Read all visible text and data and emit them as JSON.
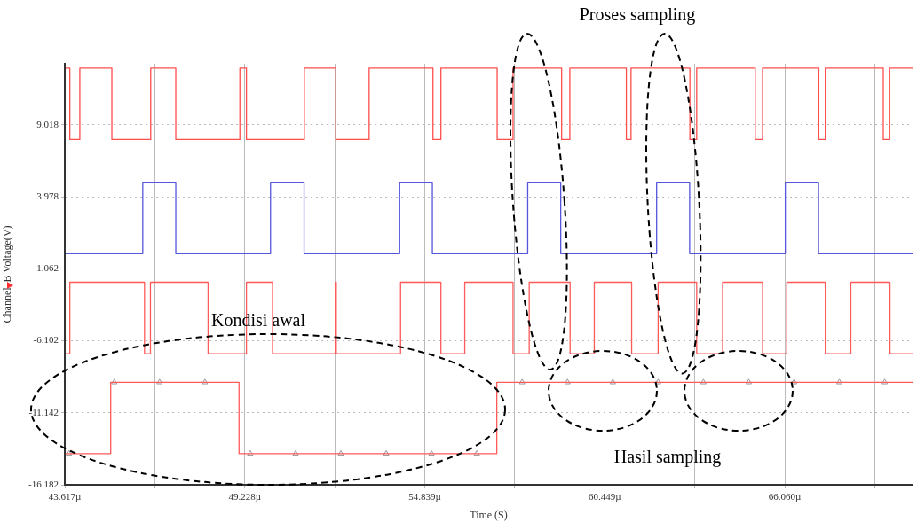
{
  "chart_data": {
    "type": "step",
    "xlabel": "Time (S)",
    "ylabel": "Channel_B Voltage(V)",
    "xlim": [
      43.617,
      70.04
    ],
    "xticks": [
      {
        "value": 43.617,
        "label": "43.617µ"
      },
      {
        "value": 46.4225,
        "label": null
      },
      {
        "value": 49.228,
        "label": "49.228µ"
      },
      {
        "value": 52.0335,
        "label": null
      },
      {
        "value": 54.839,
        "label": "54.839µ"
      },
      {
        "value": 57.644,
        "label": null
      },
      {
        "value": 60.449,
        "label": "60.449µ"
      },
      {
        "value": 63.2545,
        "label": null
      },
      {
        "value": 66.06,
        "label": "66.060µ"
      },
      {
        "value": 68.8655,
        "label": null
      }
    ],
    "ylim": [
      -16.182,
      13.3
    ],
    "yticks": [
      -16.182,
      -11.142,
      -6.102,
      -1.062,
      3.978,
      9.018
    ],
    "grid": true,
    "legend": false,
    "annotations": [
      "Proses sampling",
      "Kondisi awal",
      "Hasil sampling"
    ],
    "series": [
      {
        "color": "#ff4d4d",
        "x": [
          43.617,
          43.774,
          44.085,
          45.084,
          46.295,
          47.076,
          49.074,
          49.278,
          51.083,
          52.065,
          53.103,
          55.092,
          55.34,
          57.093,
          57.588,
          59.102,
          59.358,
          61.119,
          61.265,
          63.1,
          63.312,
          65.137,
          65.365,
          67.118,
          67.319,
          69.127,
          69.328,
          70.04
        ],
        "values": [
          13,
          8,
          13,
          8,
          13,
          8,
          13,
          8,
          13,
          8,
          13,
          8,
          13,
          8,
          13,
          8,
          13,
          8,
          13,
          8,
          13,
          8,
          13,
          8,
          13,
          8,
          13,
          13
        ]
      },
      {
        "color": "#5555dd",
        "x": [
          43.617,
          46.047,
          47.076,
          50.029,
          51.075,
          54.055,
          55.073,
          58.045,
          59.074,
          62.063,
          63.092,
          66.073,
          67.11,
          70.04
        ],
        "values": [
          0,
          5,
          0,
          5,
          0,
          5,
          0,
          5,
          0,
          5,
          0,
          5,
          0,
          0
        ]
      },
      {
        "color": "#ff5a5a",
        "x": [
          43.617,
          43.774,
          46.102,
          46.286,
          48.083,
          49.278,
          50.092,
          52.046,
          52.079,
          54.083,
          55.34,
          56.083,
          57.588,
          58.092,
          59.366,
          60.12,
          61.284,
          62.11,
          63.312,
          64.119,
          65.365,
          66.119,
          67.319,
          68.117,
          69.337,
          70.04
        ],
        "values": [
          -7,
          -2,
          -7,
          -2,
          -7,
          -2,
          -7,
          -2,
          -7,
          -2,
          -7,
          -2,
          -7,
          -2,
          -7,
          -2,
          -7,
          -2,
          -7,
          -2,
          -7,
          -2,
          -7,
          -2,
          -7,
          -7
        ]
      },
      {
        "color": "#ff5a5a",
        "x": [
          43.617,
          45.048,
          49.047,
          57.082,
          70.04
        ],
        "values": [
          -14,
          -9,
          -14,
          -9,
          -9
        ]
      },
      {
        "type": "scatter",
        "marker": "triangle",
        "color": "#999999",
        "x": [
          43.746,
          45.159,
          46.571,
          47.984,
          49.396,
          50.809,
          52.221,
          53.634,
          55.046,
          56.459,
          57.871,
          59.284,
          60.696,
          62.109,
          63.521,
          64.934,
          66.346,
          67.759,
          69.171
        ],
        "values": [
          -14,
          -9,
          -9,
          -9,
          -14,
          -14,
          -14,
          -14,
          -14,
          -14,
          -9,
          -9,
          -9,
          -9,
          -9,
          -9,
          -9,
          -9,
          -9
        ]
      }
    ]
  }
}
